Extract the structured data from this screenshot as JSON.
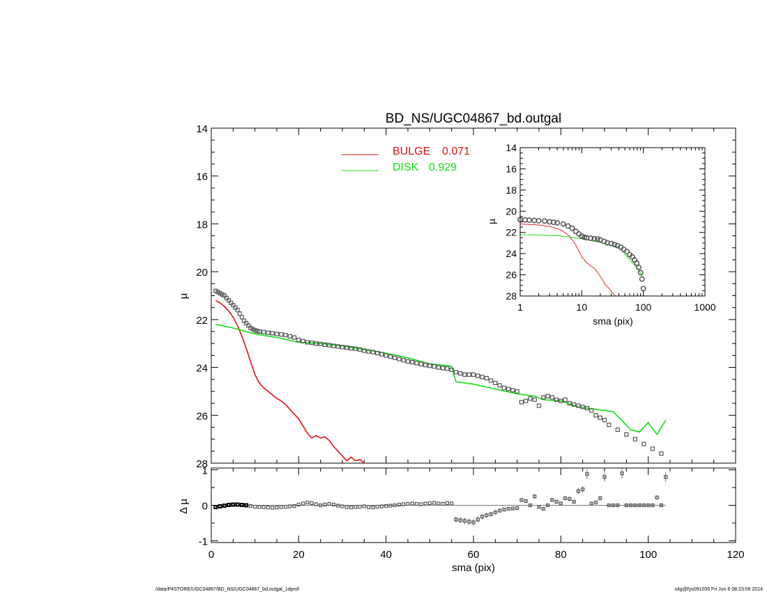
{
  "colors": {
    "bulge": "#dd1111",
    "disk": "#11dd11",
    "data": "#555555",
    "axis": "#000000"
  },
  "footer": {
    "path": "/data/P4STORE/UGC04867/BD_NS/UGC04867_bd.outgal_1dprof",
    "stamp": "s4g@fys091005  Fri Jun  6 08:23:06 2014"
  },
  "chart_data": [
    {
      "type": "scatter",
      "panel": "main",
      "title": "BD_NS/UGC04867_bd.outgal",
      "xlabel": "sma (pix)",
      "ylabel": "µ",
      "xlim": [
        0,
        120
      ],
      "ylim": [
        28,
        14
      ],
      "y_inverted": true,
      "x_ticks": [
        "0",
        "20",
        "40",
        "60",
        "80",
        "100",
        "120"
      ],
      "y_ticks": [
        "14",
        "16",
        "18",
        "20",
        "22",
        "24",
        "26",
        "28"
      ],
      "legend": [
        {
          "label": "BULGE",
          "value": "0.071",
          "color": "#dd1111"
        },
        {
          "label": "DISK",
          "value": "0.929",
          "color": "#11dd11"
        }
      ],
      "series": [
        {
          "name": "BULGE",
          "kind": "line",
          "x": [
            1,
            2,
            3,
            4,
            5,
            6,
            7,
            8,
            9,
            10,
            11,
            12,
            13,
            14,
            15,
            16,
            17,
            18,
            19,
            20,
            21,
            22,
            23,
            24,
            25,
            26,
            27,
            28,
            29,
            30,
            31,
            32,
            33,
            34,
            35
          ],
          "y": [
            21.2,
            21.3,
            21.45,
            21.65,
            21.9,
            22.25,
            22.7,
            23.2,
            23.75,
            24.3,
            24.65,
            24.85,
            25.0,
            25.15,
            25.3,
            25.4,
            25.55,
            25.75,
            25.95,
            26.15,
            26.45,
            26.75,
            26.95,
            26.85,
            26.95,
            26.9,
            27.05,
            27.3,
            27.5,
            27.7,
            27.9,
            27.75,
            27.9,
            27.85,
            28.0
          ]
        },
        {
          "name": "DISK",
          "kind": "line",
          "x": [
            1,
            5,
            10,
            15,
            20,
            25,
            30,
            35,
            40,
            45,
            50,
            55,
            56,
            60,
            65,
            70,
            74,
            76,
            80,
            84,
            88,
            92,
            96,
            98,
            100,
            102,
            104
          ],
          "y": [
            22.2,
            22.35,
            22.6,
            22.75,
            22.95,
            23.0,
            23.1,
            23.25,
            23.4,
            23.6,
            23.85,
            23.95,
            24.6,
            24.7,
            24.9,
            25.1,
            25.2,
            25.35,
            25.4,
            25.65,
            25.75,
            25.85,
            26.6,
            26.7,
            26.3,
            26.8,
            26.2
          ]
        },
        {
          "name": "data",
          "kind": "markers",
          "x": [
            1,
            1.5,
            2,
            2.5,
            3,
            3.5,
            4,
            4.5,
            5,
            5.5,
            6,
            6.5,
            7,
            7.5,
            8,
            8.5,
            9,
            9.5,
            10,
            10.5,
            11,
            12,
            13,
            14,
            15,
            16,
            17,
            18,
            19,
            20,
            21,
            22,
            23,
            24,
            25,
            26,
            27,
            28,
            29,
            30,
            31,
            32,
            33,
            34,
            35,
            36,
            37,
            38,
            39,
            40,
            41,
            42,
            43,
            44,
            45,
            46,
            47,
            48,
            49,
            50,
            51,
            52,
            53,
            54,
            55,
            56,
            57,
            58,
            59,
            60,
            61,
            62,
            63,
            64,
            65,
            66,
            67,
            68,
            69,
            70,
            71,
            72,
            73,
            74,
            75,
            76,
            77,
            78,
            79,
            80,
            81,
            82,
            83,
            84,
            85,
            86,
            87,
            88,
            89,
            90,
            91,
            93,
            95,
            97,
            99,
            101,
            103
          ],
          "y": [
            20.8,
            20.85,
            20.9,
            20.95,
            21.0,
            21.1,
            21.2,
            21.3,
            21.4,
            21.5,
            21.6,
            21.75,
            21.9,
            22.05,
            22.15,
            22.25,
            22.35,
            22.4,
            22.45,
            22.48,
            22.5,
            22.52,
            22.55,
            22.57,
            22.6,
            22.62,
            22.65,
            22.7,
            22.75,
            22.85,
            22.9,
            22.95,
            22.97,
            23.0,
            23.02,
            23.05,
            23.07,
            23.1,
            23.12,
            23.15,
            23.17,
            23.2,
            23.22,
            23.25,
            23.3,
            23.33,
            23.36,
            23.4,
            23.45,
            23.5,
            23.55,
            23.6,
            23.65,
            23.7,
            23.75,
            23.78,
            23.82,
            23.86,
            23.9,
            23.93,
            23.96,
            24.0,
            24.03,
            24.05,
            24.1,
            24.2,
            24.25,
            24.3,
            24.3,
            24.3,
            24.35,
            24.4,
            24.45,
            24.55,
            24.65,
            24.75,
            24.85,
            24.9,
            24.95,
            25.0,
            25.45,
            25.4,
            25.3,
            25.35,
            25.6,
            25.25,
            25.2,
            25.25,
            25.35,
            25.4,
            25.35,
            25.5,
            25.55,
            25.6,
            25.65,
            25.7,
            25.8,
            26.0,
            26.1,
            26.2,
            26.4,
            26.6,
            26.8,
            27.0,
            27.2,
            27.4,
            27.6
          ]
        }
      ]
    },
    {
      "type": "scatter",
      "panel": "residual",
      "xlabel": "sma (pix)",
      "ylabel": "Δ µ",
      "xlim": [
        0,
        120
      ],
      "ylim": [
        -1.05,
        1.05
      ],
      "x_ticks": [
        "0",
        "20",
        "40",
        "60",
        "80",
        "100",
        "120"
      ],
      "y_ticks": [
        "1",
        "0",
        "-1"
      ],
      "zero_line": true,
      "series": [
        {
          "name": "residual",
          "kind": "markers",
          "x": [
            1,
            2,
            3,
            4,
            5,
            6,
            7,
            8,
            9,
            10,
            11,
            12,
            13,
            14,
            15,
            16,
            17,
            18,
            19,
            20,
            21,
            22,
            23,
            24,
            25,
            26,
            27,
            28,
            29,
            30,
            31,
            32,
            33,
            34,
            35,
            36,
            37,
            38,
            39,
            40,
            41,
            42,
            43,
            44,
            45,
            46,
            47,
            48,
            49,
            50,
            51,
            52,
            53,
            54,
            55,
            56,
            57,
            58,
            59,
            60,
            61,
            62,
            63,
            64,
            65,
            66,
            67,
            68,
            69,
            70,
            71,
            72,
            73,
            74,
            75,
            76,
            77,
            78,
            79,
            80,
            81,
            82,
            83,
            84,
            85,
            86,
            87,
            88,
            89,
            90,
            91,
            92,
            93,
            94,
            95,
            96,
            97,
            98,
            99,
            100,
            101,
            102,
            103,
            104
          ],
          "y": [
            -0.05,
            -0.03,
            -0.01,
            0.01,
            0.02,
            0.02,
            0.01,
            0.0,
            -0.02,
            -0.04,
            -0.05,
            -0.05,
            -0.06,
            -0.07,
            -0.06,
            -0.05,
            -0.04,
            -0.03,
            -0.02,
            0.02,
            0.05,
            0.08,
            0.06,
            0.03,
            0.0,
            0.02,
            0.04,
            0.02,
            -0.01,
            -0.03,
            -0.05,
            -0.06,
            -0.05,
            -0.04,
            -0.03,
            -0.05,
            -0.06,
            -0.04,
            -0.03,
            -0.02,
            -0.01,
            0.0,
            0.02,
            0.03,
            0.04,
            0.05,
            0.04,
            0.03,
            0.05,
            0.06,
            0.07,
            0.05,
            0.04,
            0.06,
            0.05,
            -0.4,
            -0.42,
            -0.44,
            -0.46,
            -0.48,
            -0.4,
            -0.32,
            -0.28,
            -0.25,
            -0.2,
            -0.15,
            -0.12,
            -0.1,
            -0.09,
            -0.08,
            0.15,
            0.12,
            0.0,
            0.25,
            -0.05,
            -0.1,
            0.0,
            0.15,
            0.1,
            0.05,
            0.2,
            0.18,
            0.1,
            0.4,
            0.45,
            0.88,
            0.05,
            0.08,
            0.2,
            0.8,
            0.0,
            0.0,
            0.0,
            0.9,
            0.0,
            0.0,
            0.0,
            0.0,
            0.0,
            0.0,
            0.0,
            0.22,
            0.0,
            0.8
          ]
        }
      ]
    },
    {
      "type": "scatter",
      "panel": "inset",
      "xlabel": "sma (pix)",
      "ylabel": "µ",
      "x_log": true,
      "xlim": [
        1,
        1000
      ],
      "ylim": [
        28,
        14
      ],
      "y_inverted": true,
      "x_ticks": [
        "1",
        "10",
        "100",
        "1000"
      ],
      "y_ticks": [
        "14",
        "16",
        "18",
        "20",
        "22",
        "24",
        "26",
        "28"
      ],
      "series": [
        {
          "name": "BULGE",
          "kind": "line",
          "x": [
            1,
            2,
            3,
            4,
            5,
            6,
            7,
            8,
            9,
            10,
            12,
            14,
            16,
            18,
            20,
            24,
            28,
            32,
            35
          ],
          "y": [
            21.2,
            21.3,
            21.45,
            21.65,
            21.9,
            22.25,
            22.7,
            23.2,
            23.75,
            24.3,
            24.85,
            25.15,
            25.4,
            25.75,
            26.15,
            26.9,
            27.3,
            27.75,
            28.0
          ]
        },
        {
          "name": "DISK",
          "kind": "line",
          "x": [
            1,
            2,
            5,
            10,
            20,
            40,
            60,
            80,
            100
          ],
          "y": [
            22.2,
            22.25,
            22.35,
            22.6,
            22.95,
            23.4,
            24.6,
            25.4,
            26.3
          ]
        },
        {
          "name": "data",
          "kind": "markers",
          "x": [
            1,
            1.2,
            1.4,
            1.7,
            2,
            2.5,
            3,
            3.5,
            4,
            5,
            6,
            7,
            8,
            9,
            10,
            11,
            12,
            14,
            16,
            18,
            20,
            23,
            26,
            30,
            34,
            38,
            43,
            48,
            54,
            60,
            66,
            72,
            78,
            84,
            90,
            95,
            100
          ],
          "y": [
            20.8,
            20.82,
            20.84,
            20.87,
            20.9,
            20.93,
            21.0,
            21.05,
            21.1,
            21.2,
            21.4,
            21.6,
            21.9,
            22.15,
            22.35,
            22.45,
            22.5,
            22.55,
            22.6,
            22.62,
            22.7,
            22.85,
            22.98,
            23.05,
            23.15,
            23.25,
            23.4,
            23.6,
            23.8,
            24.1,
            24.3,
            24.6,
            24.9,
            25.3,
            25.8,
            26.4,
            27.3
          ]
        }
      ]
    }
  ]
}
